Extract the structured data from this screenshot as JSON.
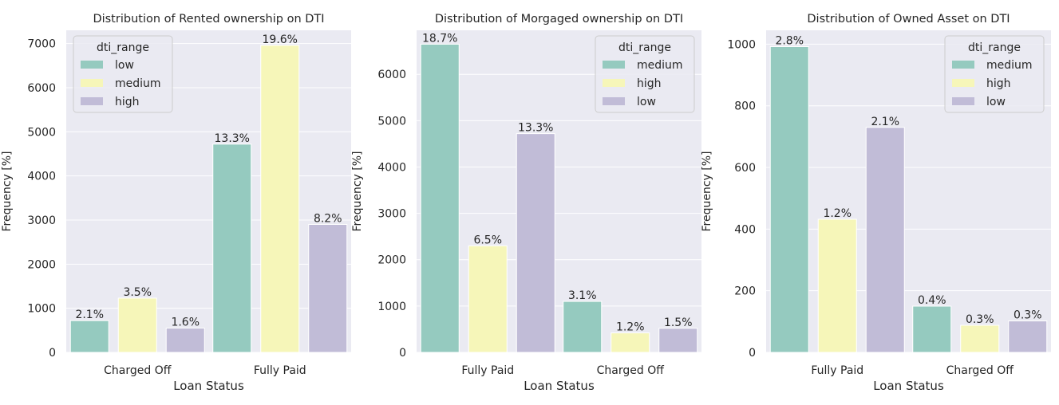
{
  "figure": {
    "background": "#ffffff",
    "plot_background": "#eaeaf2",
    "grid_color": "#ffffff",
    "text_color": "#262626"
  },
  "palette": {
    "teal": "#95cabf",
    "yellow": "#f6f6b9",
    "lavender": "#c1bcd7"
  },
  "chart_data": [
    {
      "type": "bar",
      "title": "Distribution of Rented ownership on DTI",
      "xlabel": "Loan Status",
      "ylabel": "Frequency [%]",
      "categories": [
        "Charged Off",
        "Fully Paid"
      ],
      "ylim": [
        0,
        7300
      ],
      "yticks": [
        0,
        1000,
        2000,
        3000,
        4000,
        5000,
        6000,
        7000
      ],
      "grid": true,
      "legend": {
        "title": "dti_range",
        "position": "top-left"
      },
      "series": [
        {
          "name": "low",
          "color": "#95cabf",
          "values": [
            720,
            4720
          ],
          "labels": [
            "2.1%",
            "13.3%"
          ]
        },
        {
          "name": "medium",
          "color": "#f6f6b9",
          "values": [
            1230,
            6960
          ],
          "labels": [
            "3.5%",
            "19.6%"
          ]
        },
        {
          "name": "high",
          "color": "#c1bcd7",
          "values": [
            550,
            2900
          ],
          "labels": [
            "1.6%",
            "8.2%"
          ]
        }
      ]
    },
    {
      "type": "bar",
      "title": "Distribution of Morgaged ownership on DTI",
      "xlabel": "Loan Status",
      "ylabel": "Frequency [%]",
      "categories": [
        "Fully Paid",
        "Charged Off"
      ],
      "ylim": [
        0,
        6950
      ],
      "yticks": [
        0,
        1000,
        2000,
        3000,
        4000,
        5000,
        6000
      ],
      "grid": true,
      "legend": {
        "title": "dti_range",
        "position": "top-right"
      },
      "series": [
        {
          "name": "medium",
          "color": "#95cabf",
          "values": [
            6650,
            1100
          ],
          "labels": [
            "18.7%",
            "3.1%"
          ]
        },
        {
          "name": "high",
          "color": "#f6f6b9",
          "values": [
            2300,
            420
          ],
          "labels": [
            "6.5%",
            "1.2%"
          ]
        },
        {
          "name": "low",
          "color": "#c1bcd7",
          "values": [
            4720,
            520
          ],
          "labels": [
            "13.3%",
            "1.5%"
          ]
        }
      ]
    },
    {
      "type": "bar",
      "title": "Distribution of Owned Asset on DTI",
      "xlabel": "Loan Status",
      "ylabel": "Frequency [%]",
      "categories": [
        "Fully Paid",
        "Charged Off"
      ],
      "ylim": [
        0,
        1045
      ],
      "yticks": [
        0,
        200,
        400,
        600,
        800,
        1000
      ],
      "grid": true,
      "legend": {
        "title": "dti_range",
        "position": "top-right"
      },
      "series": [
        {
          "name": "medium",
          "color": "#95cabf",
          "values": [
            992,
            150
          ],
          "labels": [
            "2.8%",
            "0.4%"
          ]
        },
        {
          "name": "high",
          "color": "#f6f6b9",
          "values": [
            432,
            88
          ],
          "labels": [
            "1.2%",
            "0.3%"
          ]
        },
        {
          "name": "low",
          "color": "#c1bcd7",
          "values": [
            730,
            102
          ],
          "labels": [
            "2.1%",
            "0.3%"
          ]
        }
      ]
    }
  ]
}
